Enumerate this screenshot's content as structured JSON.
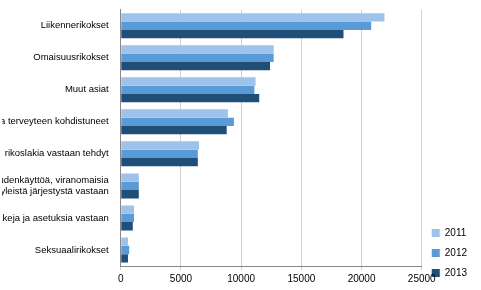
{
  "chart_data": {
    "type": "bar",
    "orientation": "horizontal",
    "categories": [
      "Liikennerikokset",
      "Omaisuusrikokset",
      "Muut asiat",
      "Henkeen ja terveyteen kohdistuneet",
      "Muut rikoslakia vastaan tehdyt",
      "Oikeudenkäyttöä, viranomaisia ja yleistä järjestystä vastaan",
      "Muita lakeja ja asetuksia vastaan",
      "Seksuaalirikokset"
    ],
    "series": [
      {
        "name": "2011",
        "color": "#9dc3ec",
        "values": [
          21900,
          12700,
          11200,
          8900,
          6500,
          1500,
          1100,
          600
        ]
      },
      {
        "name": "2012",
        "color": "#5b9bd5",
        "values": [
          20800,
          12700,
          11100,
          9400,
          6400,
          1500,
          1100,
          700
        ]
      },
      {
        "name": "2013",
        "color": "#1f4e79",
        "values": [
          18500,
          12400,
          11500,
          8800,
          6400,
          1500,
          1000,
          600
        ]
      }
    ],
    "xlim": [
      0,
      25000
    ],
    "xticks": [
      0,
      5000,
      10000,
      15000,
      20000,
      25000
    ],
    "grid": true,
    "legend": "right"
  }
}
